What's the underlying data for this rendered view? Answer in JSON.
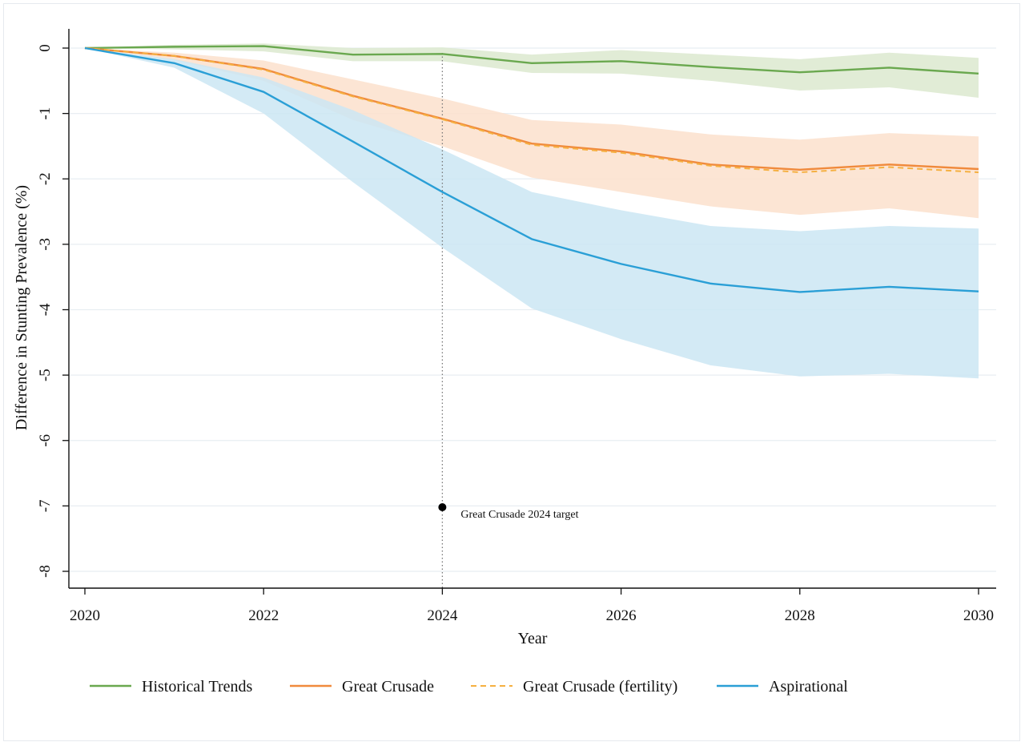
{
  "chart_data": {
    "type": "line",
    "xlabel": "Year",
    "ylabel": "Difference in Stunting Prevalence (%)",
    "xlim": [
      2020,
      2030
    ],
    "ylim": [
      -8.25,
      0.3
    ],
    "x_ticks": [
      2020,
      2022,
      2024,
      2026,
      2028,
      2030
    ],
    "y_ticks": [
      0,
      -1,
      -2,
      -3,
      -4,
      -5,
      -6,
      -7,
      -8
    ],
    "grid": "horizontal",
    "legend_position": "bottom",
    "x": [
      2020,
      2021,
      2022,
      2023,
      2024,
      2025,
      2026,
      2027,
      2028,
      2029,
      2030
    ],
    "series": [
      {
        "name": "Historical Trends",
        "color": "#6aa84f",
        "band_color": "#dce9cf",
        "style": "solid",
        "values": [
          0,
          0.02,
          0.03,
          -0.1,
          -0.09,
          -0.23,
          -0.2,
          -0.29,
          -0.37,
          -0.3,
          -0.39
        ],
        "lower": [
          0,
          -0.02,
          -0.05,
          -0.2,
          -0.2,
          -0.38,
          -0.39,
          -0.5,
          -0.65,
          -0.6,
          -0.76
        ],
        "upper": [
          0,
          0.05,
          0.07,
          0.0,
          0.01,
          -0.1,
          -0.03,
          -0.1,
          -0.17,
          -0.07,
          -0.15
        ]
      },
      {
        "name": "Great Crusade",
        "color": "#f08a3c",
        "band_color": "#fbe1cd",
        "style": "solid",
        "values": [
          0,
          -0.12,
          -0.32,
          -0.73,
          -1.08,
          -1.46,
          -1.58,
          -1.78,
          -1.86,
          -1.78,
          -1.85
        ],
        "lower": [
          0,
          -0.18,
          -0.5,
          -1.1,
          -1.5,
          -1.98,
          -2.2,
          -2.42,
          -2.55,
          -2.45,
          -2.6
        ],
        "upper": [
          0,
          -0.07,
          -0.19,
          -0.48,
          -0.77,
          -1.1,
          -1.17,
          -1.32,
          -1.4,
          -1.3,
          -1.35
        ]
      },
      {
        "name": "Great Crusade (fertility)",
        "color": "#f5b041",
        "style": "dashed",
        "values": [
          0,
          -0.12,
          -0.33,
          -0.74,
          -1.09,
          -1.48,
          -1.6,
          -1.8,
          -1.9,
          -1.82,
          -1.9
        ]
      },
      {
        "name": "Aspirational",
        "color": "#2a9fd6",
        "band_color": "#cbe6f3",
        "style": "solid",
        "values": [
          0,
          -0.23,
          -0.67,
          -1.43,
          -2.2,
          -2.92,
          -3.3,
          -3.6,
          -3.73,
          -3.65,
          -3.72
        ],
        "lower": [
          0,
          -0.3,
          -1.0,
          -2.05,
          -3.05,
          -3.98,
          -4.45,
          -4.85,
          -5.02,
          -4.98,
          -5.05
        ],
        "upper": [
          0,
          -0.17,
          -0.45,
          -0.95,
          -1.55,
          -2.2,
          -2.48,
          -2.72,
          -2.8,
          -2.72,
          -2.76
        ]
      }
    ],
    "reference_line": {
      "x": 2024,
      "style": "dotted"
    },
    "annotations": [
      {
        "x": 2024,
        "y": -7.02,
        "label": "Great Crusade 2024 target",
        "marker": "dot"
      }
    ]
  }
}
